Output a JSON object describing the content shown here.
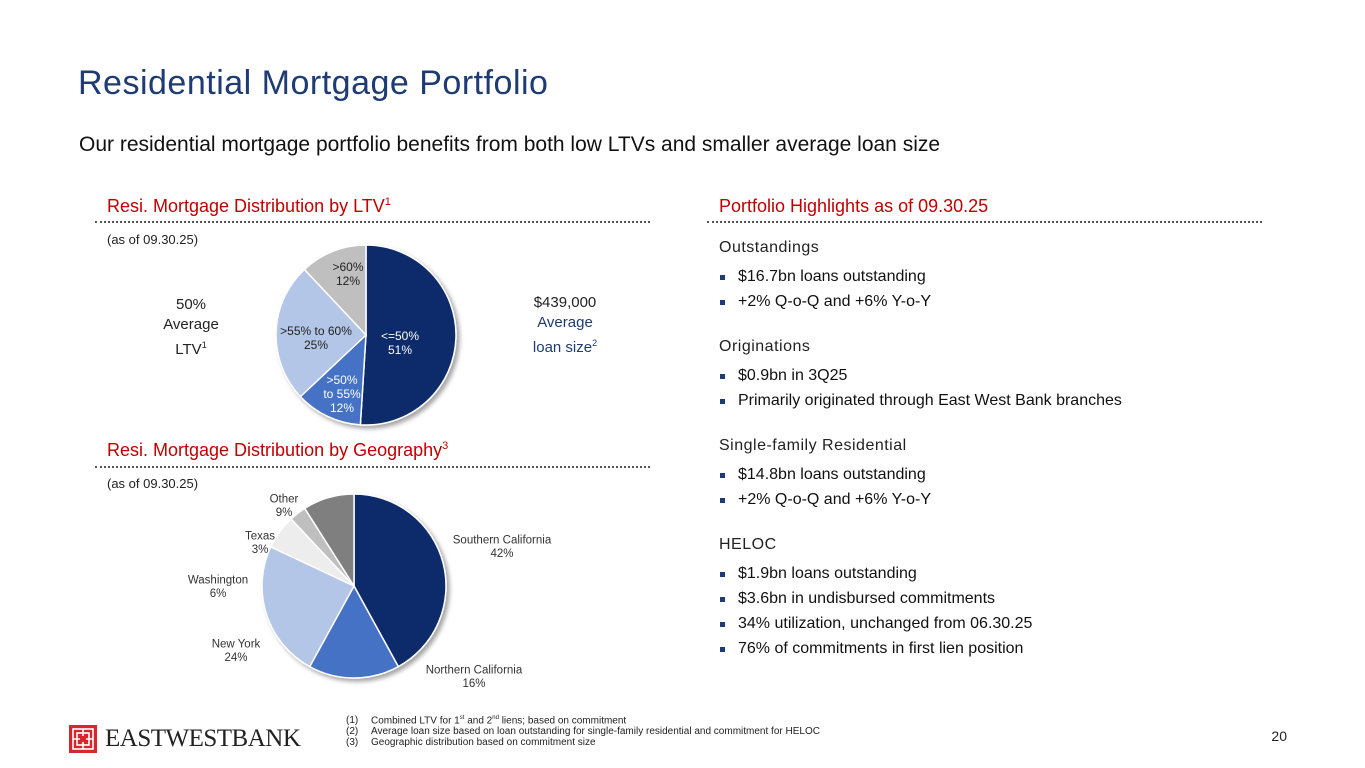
{
  "title": "Residential Mortgage Portfolio",
  "subtitle": "Our residential mortgage portfolio benefits from both low LTVs and smaller average loan size",
  "ltv_section": {
    "heading": "Resi. Mortgage Distribution by LTV",
    "heading_sup": "1",
    "as_of": "(as of 09.30.25)",
    "avg_ltv": {
      "value": "50%",
      "label_1": "Average",
      "label_2": "LTV",
      "sup": "1"
    },
    "avg_loan": {
      "value": "$439,000",
      "label_1": "Average",
      "label_2": "loan size",
      "sup": "2"
    },
    "slices": [
      {
        "lines": [
          "<=50%",
          "51%"
        ],
        "value": 51,
        "color": "#0e2a6b",
        "text_color": "#ffffff"
      },
      {
        "lines": [
          ">50%",
          "to 55%",
          "12%"
        ],
        "value": 12,
        "color": "#4472c4",
        "text_color": "#ffffff"
      },
      {
        "lines": [
          ">55% to 60%",
          "25%"
        ],
        "value": 25,
        "color": "#b4c6e7",
        "text_color": "#222222"
      },
      {
        "lines": [
          ">60%",
          "12%"
        ],
        "value": 12,
        "color": "#bfbfbf",
        "text_color": "#222222"
      }
    ]
  },
  "geo_section": {
    "heading": "Resi. Mortgage Distribution by Geography",
    "heading_sup": "3",
    "as_of": "(as of 09.30.25)",
    "slices": [
      {
        "lines": [
          "Southern California",
          "42%"
        ],
        "value": 42,
        "color": "#0e2a6b"
      },
      {
        "lines": [
          "Northern California",
          "16%"
        ],
        "value": 16,
        "color": "#4472c4"
      },
      {
        "lines": [
          "New York",
          "24%"
        ],
        "value": 24,
        "color": "#b4c6e7"
      },
      {
        "lines": [
          "Washington",
          "6%"
        ],
        "value": 6,
        "color": "#ededed"
      },
      {
        "lines": [
          "Texas",
          "3%"
        ],
        "value": 3,
        "color": "#bfbfbf"
      },
      {
        "lines": [
          "Other",
          "9%"
        ],
        "value": 9,
        "color": "#7f7f7f"
      }
    ]
  },
  "highlights": {
    "heading": "Portfolio Highlights as of 09.30.25",
    "groups": [
      {
        "title": "Outstandings",
        "items": [
          "$16.7bn loans outstanding",
          "+2% Q-o-Q and +6% Y-o-Y"
        ]
      },
      {
        "title": "Originations",
        "items": [
          "$0.9bn in 3Q25",
          "Primarily originated through East West Bank branches"
        ]
      },
      {
        "title": "Single-family Residential",
        "items": [
          "$14.8bn loans outstanding",
          "+2% Q-o-Q and +6% Y-o-Y"
        ]
      },
      {
        "title": "HELOC",
        "items": [
          "$1.9bn loans outstanding",
          "$3.6bn in undisbursed commitments",
          "34% utilization, unchanged from 06.30.25",
          "76% of commitments in first lien position"
        ]
      }
    ]
  },
  "footnotes": {
    "f1_num": "(1)",
    "f1_a": "Combined LTV for 1",
    "f1_sup1": "st",
    "f1_b": " and 2",
    "f1_sup2": "nd",
    "f1_c": " liens; based on commitment",
    "f2_num": "(2)",
    "f2": "Average loan size based on loan outstanding for single-family residential and commitment for HELOC",
    "f3_num": "(3)",
    "f3": "Geographic distribution based on commitment size"
  },
  "logo_text": "EASTWESTBANK",
  "page_number": "20",
  "colors": {
    "title_blue": "#1f3b73",
    "section_red": "#c00000",
    "logo_red": "#d7262e",
    "dark_navy": "#0e2a6b"
  }
}
